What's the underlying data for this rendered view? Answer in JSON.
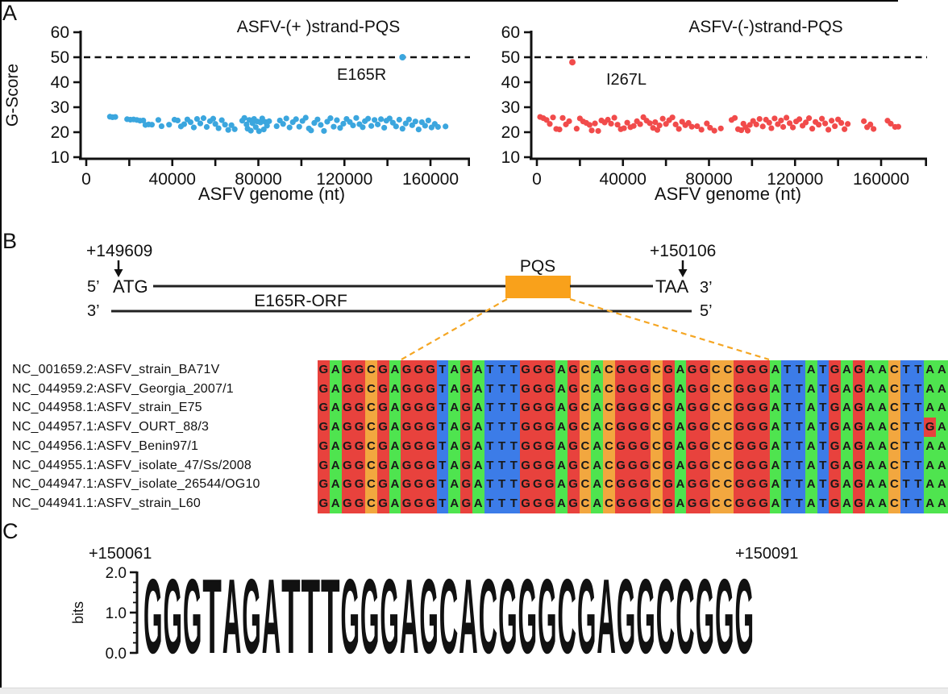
{
  "panel_letters": [
    "A",
    "B",
    "C"
  ],
  "chart_data": [
    {
      "type": "scatter",
      "title": "ASFV-(+ )strand-PQS",
      "xlabel": "ASFV genome (nt)",
      "ylabel": "G-Score",
      "color": "#3BA6DE",
      "xlim": [
        0,
        178000
      ],
      "ylim": [
        10,
        60
      ],
      "xticks": [
        0,
        40000,
        80000,
        120000,
        160000
      ],
      "yticks": [
        10,
        20,
        30,
        40,
        50,
        60
      ],
      "threshold_line": {
        "y": 50,
        "style": "dashed"
      },
      "highlight": {
        "x": 147000,
        "y": 50,
        "label": "E165R"
      },
      "points": [
        [
          11000,
          26.2
        ],
        [
          12200,
          26.0
        ],
        [
          13500,
          26.1
        ],
        [
          19000,
          25.2
        ],
        [
          20500,
          25.0
        ],
        [
          22000,
          25.1
        ],
        [
          23500,
          24.9
        ],
        [
          25000,
          24.6
        ],
        [
          26500,
          24.7
        ],
        [
          27500,
          22.9
        ],
        [
          29000,
          23.1
        ],
        [
          30500,
          23.0
        ],
        [
          33500,
          24.9
        ],
        [
          35000,
          22.4
        ],
        [
          38500,
          23.0
        ],
        [
          41000,
          25.0
        ],
        [
          42500,
          24.7
        ],
        [
          44000,
          22.3
        ],
        [
          45500,
          23.2
        ],
        [
          47000,
          25.1
        ],
        [
          48500,
          24.0
        ],
        [
          50000,
          21.9
        ],
        [
          51500,
          25.3
        ],
        [
          53000,
          23.5
        ],
        [
          54500,
          25.6
        ],
        [
          56000,
          22.1
        ],
        [
          57500,
          24.4
        ],
        [
          59000,
          25.4
        ],
        [
          60000,
          23.3
        ],
        [
          61500,
          21.6
        ],
        [
          63000,
          24.8
        ],
        [
          64500,
          23.0
        ],
        [
          66000,
          20.9
        ],
        [
          67500,
          22.8
        ],
        [
          69000,
          21.2
        ],
        [
          72500,
          24.6
        ],
        [
          73500,
          25.7
        ],
        [
          74500,
          23.1
        ],
        [
          75000,
          21.4
        ],
        [
          75800,
          24.9
        ],
        [
          76500,
          20.6
        ],
        [
          77300,
          23.6
        ],
        [
          78000,
          25.3
        ],
        [
          78800,
          22.0
        ],
        [
          79500,
          24.3
        ],
        [
          80300,
          20.4
        ],
        [
          81000,
          23.9
        ],
        [
          81800,
          25.5
        ],
        [
          82500,
          21.1
        ],
        [
          83300,
          24.1
        ],
        [
          84000,
          22.6
        ],
        [
          85000,
          24.4
        ],
        [
          88500,
          22.4
        ],
        [
          90000,
          24.7
        ],
        [
          91500,
          23.3
        ],
        [
          93000,
          25.5
        ],
        [
          94500,
          21.9
        ],
        [
          96000,
          24.0
        ],
        [
          97500,
          25.2
        ],
        [
          99000,
          22.2
        ],
        [
          100500,
          24.5
        ],
        [
          102000,
          25.8
        ],
        [
          103500,
          21.5
        ],
        [
          104500,
          20.7
        ],
        [
          106000,
          23.7
        ],
        [
          107500,
          25.1
        ],
        [
          109000,
          22.9
        ],
        [
          110500,
          20.5
        ],
        [
          112000,
          24.2
        ],
        [
          113500,
          25.6
        ],
        [
          115000,
          22.2
        ],
        [
          116500,
          24.8
        ],
        [
          118000,
          21.7
        ],
        [
          119500,
          23.4
        ],
        [
          121000,
          25.3
        ],
        [
          122500,
          24.1
        ],
        [
          124000,
          22.7
        ],
        [
          125500,
          25.7
        ],
        [
          127000,
          23.2
        ],
        [
          128500,
          22.0
        ],
        [
          129500,
          24.4
        ],
        [
          131000,
          25.4
        ],
        [
          132500,
          22.5
        ],
        [
          134000,
          24.9
        ],
        [
          135500,
          23.1
        ],
        [
          137000,
          25.2
        ],
        [
          138500,
          21.8
        ],
        [
          139500,
          24.6
        ],
        [
          141000,
          25.5
        ],
        [
          142500,
          23.8
        ],
        [
          144000,
          22.3
        ],
        [
          145500,
          25.0
        ],
        [
          147000,
          21.4
        ],
        [
          148500,
          23.5
        ],
        [
          150000,
          25.1
        ],
        [
          151500,
          22.8
        ],
        [
          153000,
          24.3
        ],
        [
          154500,
          21.1
        ],
        [
          156000,
          24.0
        ],
        [
          157500,
          22.6
        ],
        [
          159000,
          24.7
        ],
        [
          160500,
          21.9
        ],
        [
          162000,
          23.3
        ],
        [
          163500,
          22.1
        ],
        [
          167000,
          22.3
        ]
      ]
    },
    {
      "type": "scatter",
      "title": "ASFV-(-)strand-PQS",
      "xlabel": "ASFV genome (nt)",
      "ylabel": "",
      "color": "#F14B4B",
      "xlim": [
        0,
        178000
      ],
      "ylim": [
        10,
        60
      ],
      "xticks": [
        0,
        40000,
        80000,
        120000,
        160000
      ],
      "yticks": [
        10,
        20,
        30,
        40,
        50,
        60
      ],
      "threshold_line": {
        "y": 50,
        "style": "dashed"
      },
      "highlight": {
        "x": 16500,
        "y": 48,
        "label": "I267L"
      },
      "points": [
        [
          1500,
          26.1
        ],
        [
          3000,
          25.6
        ],
        [
          4500,
          24.9
        ],
        [
          6000,
          23.3
        ],
        [
          7500,
          25.9
        ],
        [
          9000,
          21.3
        ],
        [
          10500,
          21.1
        ],
        [
          12000,
          25.7
        ],
        [
          13500,
          23.1
        ],
        [
          15000,
          24.4
        ],
        [
          18500,
          21.4
        ],
        [
          20000,
          25.5
        ],
        [
          21500,
          24.3
        ],
        [
          23000,
          23.7
        ],
        [
          24500,
          22.9
        ],
        [
          25500,
          20.7
        ],
        [
          27000,
          23.5
        ],
        [
          28500,
          20.5
        ],
        [
          30000,
          24.7
        ],
        [
          31500,
          23.9
        ],
        [
          33000,
          25.0
        ],
        [
          34500,
          23.4
        ],
        [
          36000,
          25.8
        ],
        [
          37500,
          23.0
        ],
        [
          39000,
          21.2
        ],
        [
          40500,
          21.6
        ],
        [
          42000,
          23.8
        ],
        [
          43500,
          22.0
        ],
        [
          45000,
          22.5
        ],
        [
          46500,
          24.4
        ],
        [
          48000,
          23.2
        ],
        [
          49500,
          26.0
        ],
        [
          51000,
          24.6
        ],
        [
          52500,
          23.6
        ],
        [
          54000,
          21.7
        ],
        [
          55000,
          24.0
        ],
        [
          56000,
          20.9
        ],
        [
          57000,
          22.7
        ],
        [
          58500,
          25.4
        ],
        [
          60000,
          23.3
        ],
        [
          61500,
          24.8
        ],
        [
          63000,
          25.9
        ],
        [
          64500,
          23.1
        ],
        [
          66000,
          21.3
        ],
        [
          67500,
          24.2
        ],
        [
          69000,
          22.8
        ],
        [
          70500,
          23.7
        ],
        [
          72000,
          22.2
        ],
        [
          74500,
          22.4
        ],
        [
          76500,
          21.0
        ],
        [
          79000,
          23.5
        ],
        [
          80500,
          21.8
        ],
        [
          82500,
          20.6
        ],
        [
          85500,
          21.5
        ],
        [
          90500,
          24.9
        ],
        [
          92000,
          25.7
        ],
        [
          93500,
          21.2
        ],
        [
          95000,
          20.8
        ],
        [
          96000,
          23.4
        ],
        [
          97000,
          22.0
        ],
        [
          98000,
          20.6
        ],
        [
          99000,
          22.9
        ],
        [
          100500,
          24.5
        ],
        [
          102000,
          23.1
        ],
        [
          103500,
          25.3
        ],
        [
          105000,
          22.3
        ],
        [
          106500,
          25.0
        ],
        [
          108000,
          23.8
        ],
        [
          109000,
          21.6
        ],
        [
          110500,
          25.5
        ],
        [
          112000,
          23.2
        ],
        [
          113500,
          24.7
        ],
        [
          114500,
          22.1
        ],
        [
          116000,
          25.8
        ],
        [
          117500,
          23.6
        ],
        [
          119000,
          21.9
        ],
        [
          120500,
          24.3
        ],
        [
          122000,
          25.2
        ],
        [
          123500,
          22.6
        ],
        [
          125000,
          23.9
        ],
        [
          126500,
          25.6
        ],
        [
          128000,
          21.4
        ],
        [
          129500,
          24.1
        ],
        [
          131000,
          23.0
        ],
        [
          132500,
          25.4
        ],
        [
          134000,
          23.5
        ],
        [
          135500,
          21.0
        ],
        [
          137000,
          24.6
        ],
        [
          138500,
          22.4
        ],
        [
          140000,
          25.1
        ],
        [
          141500,
          23.7
        ],
        [
          143000,
          21.2
        ],
        [
          144500,
          23.3
        ],
        [
          152000,
          24.4
        ],
        [
          153500,
          22.0
        ],
        [
          155000,
          23.1
        ],
        [
          156500,
          21.3
        ],
        [
          163000,
          24.6
        ],
        [
          164500,
          23.4
        ],
        [
          166500,
          22.1
        ],
        [
          168000,
          22.2
        ]
      ]
    },
    {
      "type": "sequence_logo",
      "ylabel": "bits",
      "ylim": [
        0,
        2
      ],
      "ytick_labels": [
        "0.0",
        "1.0",
        "2.0"
      ],
      "start_label": "+150061",
      "end_label": "+150091",
      "letters": "GGGTAGATTTGGGAGCACGGGCGAGGCCGGG",
      "bits": [
        1.9,
        1.9,
        1.9,
        1.9,
        1.9,
        1.9,
        1.9,
        1.9,
        1.9,
        1.9,
        1.9,
        1.9,
        1.9,
        1.9,
        1.9,
        1.9,
        1.9,
        1.9,
        1.9,
        1.9,
        1.9,
        1.9,
        1.9,
        1.9,
        1.9,
        1.9,
        1.9,
        1.9,
        1.9,
        1.9,
        1.9
      ],
      "colors": {
        "A": "#157A15",
        "C": "#1717DE",
        "G": "#F5A503",
        "T": "#EE1111"
      }
    }
  ],
  "panel_b": {
    "start_coord": "+149609",
    "end_coord": "+150106",
    "five_prime": "5’",
    "three_prime": "3’",
    "start_codon": "ATG",
    "stop_codon": "TAA",
    "orf_label": "E165R-ORF",
    "pqs_label": "PQS",
    "box_color": "#F9A11B",
    "dash_color": "#F5A623"
  },
  "alignment": {
    "base_colors": {
      "A": "#4FE44F",
      "C": "#F2A73F",
      "G": "#E8423D",
      "T": "#3C7CE8"
    },
    "rows": [
      {
        "name": "NC_001659.2:ASFV_strain_BA71V",
        "seq": "GAGGCGAGGGTAGATTTGGGAGCACGGGCGAGGCCGGGATTATGAGAACTTAA"
      },
      {
        "name": "NC_044959.2:ASFV_Georgia_2007/1",
        "seq": "GAGGCGAGGGTAGATTTGGGAGCACGGGCGAGGCCGGGATTATGAGAACTTAA"
      },
      {
        "name": "NC_044958.1:ASFV_strain_E75",
        "seq": "GAGGCGAGGGTAGATTTGGGAGCACGGGCGAGGCCGGGATTATGAGAACTTAA"
      },
      {
        "name": "NC_044957.1:ASFV_OURT_88/3",
        "seq": "GAGGCGAGGGTAGATTTGGGAGCACGGGCGAGGCCGGGATTATGAGAACTTGA"
      },
      {
        "name": "NC_044956.1:ASFV_Benin97/1",
        "seq": "GAGGCGAGGGTAGATTTGGGAGCACGGGCGAGGCCGGGATTATGAGAACTTAA"
      },
      {
        "name": "NC_044955.1:ASFV_isolate_47/Ss/2008",
        "seq": "GAGGCGAGGGTAGATTTGGGAGCACGGGCGAGGCCGGGATTATGAGAACTTAA"
      },
      {
        "name": "NC_044947.1:ASFV_isolate_26544/OG10",
        "seq": "GAGGCGAGGGTAGATTTGGGAGCACGGGCGAGGCCGGGATTATGAGAACTTAA"
      },
      {
        "name": "NC_044941.1:ASFV_strain_L60",
        "seq": "GAGGCGAGGGTAGATTTGGGAGCACGGGCGAGGCCGGGATTATGAGAACTTAA"
      }
    ]
  }
}
